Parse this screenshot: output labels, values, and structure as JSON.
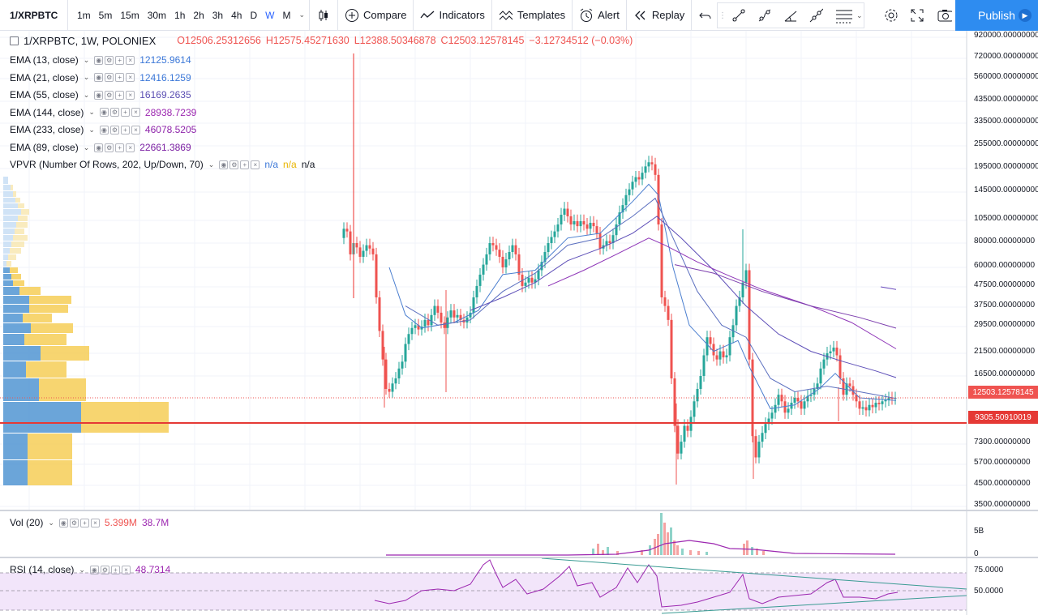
{
  "toolbar": {
    "symbol": "1/XRPBTC",
    "timeframes": [
      "1m",
      "5m",
      "15m",
      "30m",
      "1h",
      "2h",
      "3h",
      "4h",
      "D",
      "W",
      "M"
    ],
    "active_timeframe": "W",
    "compare_label": "Compare",
    "indicators_label": "Indicators",
    "templates_label": "Templates",
    "alert_label": "Alert",
    "replay_label": "Replay",
    "publish_label": "Publish"
  },
  "header": {
    "title": "1/XRPBTC, 1W, POLONIEX",
    "open": "O12506.25312656",
    "high": "H12575.45271630",
    "low": "L12388.50346878",
    "close": "C12503.12578145",
    "change": "−3.12734512 (−0.03%)"
  },
  "indicators": [
    {
      "label": "EMA (13, close)",
      "value": "12125.9614",
      "color": "#3c78d8"
    },
    {
      "label": "EMA (21, close)",
      "value": "12416.1259",
      "color": "#3c78d8"
    },
    {
      "label": "EMA (55, close)",
      "value": "16169.2635",
      "color": "#5b4fb3"
    },
    {
      "label": "EMA (144, close)",
      "value": "28938.7239",
      "color": "#9c27b0"
    },
    {
      "label": "EMA (233, close)",
      "value": "46078.5205",
      "color": "#8e24aa"
    },
    {
      "label": "EMA (89, close)",
      "value": "22661.3869",
      "color": "#7b1fa2"
    }
  ],
  "vpvr": {
    "label": "VPVR (Number Of Rows, 202, Up/Down, 70)",
    "values": [
      "n/a",
      "n/a",
      "n/a"
    ],
    "colors": [
      "#3c78d8",
      "#e8b400",
      "#131722"
    ]
  },
  "price_axis": {
    "ticks": [
      "920000.00000000",
      "720000.00000000",
      "560000.00000000",
      "435000.00000000",
      "335000.00000000",
      "255000.00000000",
      "195000.00000000",
      "145000.00000000",
      "105000.00000000",
      "80000.00000000",
      "60000.00000000",
      "47500.00000000",
      "37500.00000000",
      "29500.00000000",
      "21500.00000000",
      "16500.00000000",
      "7300.00000000",
      "5700.00000000",
      "4500.00000000",
      "3500.00000000"
    ],
    "last_price": "12503.12578145",
    "horizontal_line": "9305.50910019",
    "last_price_color": "#ef5350",
    "line_color": "#e53935"
  },
  "volume": {
    "label": "Vol (20)",
    "value1": "5.399M",
    "value2": "38.7M",
    "value1_color": "#ef5350",
    "value2_color": "#9c27b0",
    "axis_ticks": [
      "5B",
      "0"
    ]
  },
  "rsi": {
    "label": "RSI (14, close)",
    "value": "48.7314",
    "value_color": "#9c27b0",
    "axis_ticks": [
      "75.0000",
      "50.0000"
    ]
  },
  "chart_data": {
    "type": "candlestick",
    "scale": "log",
    "series": [
      {
        "name": "EMA (13, close)",
        "last": 12125.9614
      },
      {
        "name": "EMA (21, close)",
        "last": 12416.1259
      },
      {
        "name": "EMA (55, close)",
        "last": 16169.2635
      },
      {
        "name": "EMA (89, close)",
        "last": 22661.3869
      },
      {
        "name": "EMA (144, close)",
        "last": 28938.7239
      },
      {
        "name": "EMA (233, close)",
        "last": 46078.5205
      }
    ],
    "last_close": 12503.12578145,
    "horizontal_level": 9305.50910019,
    "rsi_last": 48.7314
  }
}
